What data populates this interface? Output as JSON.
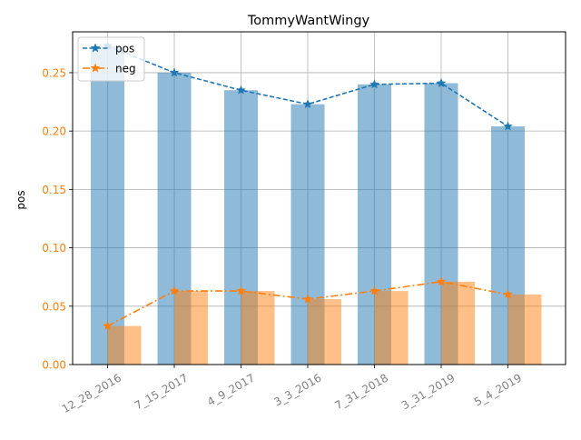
{
  "chart_data": {
    "type": "bar",
    "title": "TommyWantWingy",
    "ylabel": "pos",
    "xlabel": "",
    "categories": [
      "12_28_2016",
      "7_15_2017",
      "4_9_2017",
      "3_3_2016",
      "7_31_2018",
      "3_31_2019",
      "5_4_2019"
    ],
    "ylim": [
      0,
      0.285
    ],
    "yticks": [
      "0.00",
      "0.05",
      "0.10",
      "0.15",
      "0.20",
      "0.25"
    ],
    "grid": true,
    "legend_position": "top-left",
    "series": [
      {
        "name": "pos",
        "values": [
          0.273,
          0.25,
          0.235,
          0.223,
          0.24,
          0.241,
          0.204
        ],
        "color": "#1f77b4",
        "line_style": "dashed",
        "marker": "star"
      },
      {
        "name": "neg",
        "values": [
          0.033,
          0.063,
          0.063,
          0.056,
          0.063,
          0.071,
          0.06
        ],
        "color": "#ff7f0e",
        "line_style": "dashdot",
        "marker": "star"
      }
    ],
    "ytick_color": "#ff7f0e",
    "xtick_color": "#808080"
  }
}
